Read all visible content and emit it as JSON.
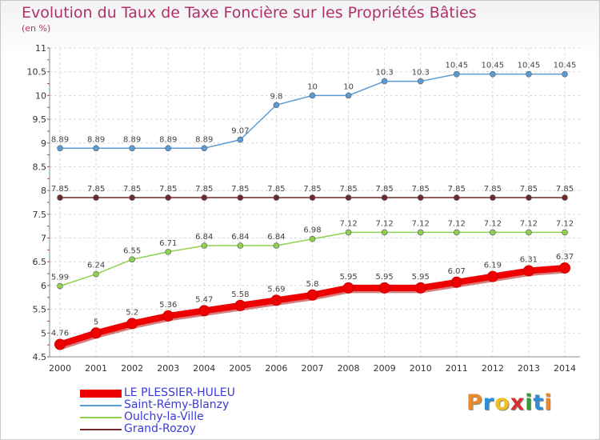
{
  "title": "Evolution du Taux de Taxe Foncière sur les Propriétés Bâties",
  "unit": "(en %)",
  "chart_data": {
    "type": "line",
    "title": "Evolution du Taux de Taxe Foncière sur les Propriétés Bâties",
    "ylabel": "(en %)",
    "xlabel": "",
    "ylim": [
      4.5,
      11
    ],
    "yticks": [
      "4.5",
      "5",
      "5.5",
      "6",
      "6.5",
      "7",
      "7.5",
      "8",
      "8.5",
      "9",
      "9.5",
      "10",
      "10.5",
      "11"
    ],
    "categories": [
      "2000",
      "2001",
      "2002",
      "2003",
      "2004",
      "2005",
      "2006",
      "2007",
      "2008",
      "2009",
      "2010",
      "2011",
      "2012",
      "2013",
      "2014"
    ],
    "grid": true,
    "series": [
      {
        "name": "LE PLESSIER-HULEU",
        "color": "#ee0000",
        "values": [
          4.76,
          5,
          5.2,
          5.36,
          5.47,
          5.58,
          5.69,
          5.8,
          5.95,
          5.95,
          5.95,
          6.07,
          6.19,
          6.31,
          6.37
        ],
        "labels": [
          "4.76",
          "5",
          "5.2",
          "5.36",
          "5.47",
          "5.58",
          "5.69",
          "5.8",
          "5.95",
          "5.95",
          "5.95",
          "6.07",
          "6.19",
          "6.31",
          "6.37"
        ]
      },
      {
        "name": "Saint-Rémy-Blanzy",
        "color": "#5b9bd5",
        "values": [
          8.89,
          8.89,
          8.89,
          8.89,
          8.89,
          9.07,
          9.8,
          10,
          10,
          10.3,
          10.3,
          10.45,
          10.45,
          10.45,
          10.45
        ],
        "labels": [
          "8.89",
          "8.89",
          "8.89",
          "8.89",
          "8.89",
          "9.07",
          "9.8",
          "10",
          "10",
          "10.3",
          "10.3",
          "10.45",
          "10.45",
          "10.45",
          "10.45"
        ]
      },
      {
        "name": "Oulchy-la-Ville",
        "color": "#8fd14f",
        "values": [
          5.99,
          6.24,
          6.55,
          6.71,
          6.84,
          6.84,
          6.84,
          6.98,
          7.12,
          7.12,
          7.12,
          7.12,
          7.12,
          7.12,
          7.12
        ],
        "labels": [
          "5.99",
          "6.24",
          "6.55",
          "6.71",
          "6.84",
          "6.84",
          "6.84",
          "6.98",
          "7.12",
          "7.12",
          "7.12",
          "7.12",
          "7.12",
          "7.12",
          "7.12"
        ]
      },
      {
        "name": "Grand-Rozoy",
        "color": "#6e2a2a",
        "values": [
          7.85,
          7.85,
          7.85,
          7.85,
          7.85,
          7.85,
          7.85,
          7.85,
          7.85,
          7.85,
          7.85,
          7.85,
          7.85,
          7.85,
          7.85
        ],
        "labels": [
          "7.85",
          "7.85",
          "7.85",
          "7.85",
          "7.85",
          "7.85",
          "7.85",
          "7.85",
          "7.85",
          "7.85",
          "7.85",
          "7.85",
          "7.85",
          "7.85",
          "7.85"
        ]
      }
    ]
  },
  "logo": {
    "letters": [
      "P",
      "r",
      "o",
      "x",
      "i",
      "t",
      "i"
    ],
    "colors": [
      "#e8892b",
      "#2a8fd8",
      "#f0c020",
      "#d83030",
      "#3a9a3a",
      "#2a8fd8",
      "#e8892b"
    ]
  }
}
